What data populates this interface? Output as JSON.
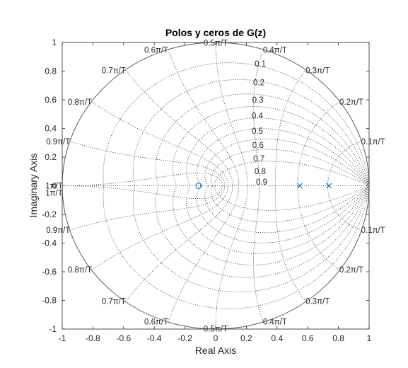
{
  "chart_data": {
    "type": "scatter",
    "title": "Polos y ceros de G(z)",
    "xlabel": "Real Axis",
    "ylabel": "Imaginary Axis",
    "xlim": [
      -1,
      1
    ],
    "ylim": [
      -1,
      1
    ],
    "x_ticks": [
      -1,
      -0.8,
      -0.6,
      -0.4,
      -0.2,
      0,
      0.2,
      0.4,
      0.6,
      0.8,
      1
    ],
    "x_tick_labels": [
      "-1",
      "-0.8",
      "-0.6",
      "-0.4",
      "-0.2",
      "0",
      "0.2",
      "0.4",
      "0.6",
      "0.8",
      "1"
    ],
    "y_ticks": [
      1,
      0.8,
      0.6,
      0.4,
      0.2,
      0,
      -0.2,
      -0.4,
      -0.6,
      -0.8,
      -1
    ],
    "y_tick_labels": [
      "1",
      "0.8",
      "0.6",
      "0.4",
      "0.2",
      "0",
      "-0.2",
      "-0.4",
      "-0.6",
      "-0.8",
      "-1"
    ],
    "grid": "zgrid",
    "unit_circle": true,
    "damping_values": [
      0.1,
      0.2,
      0.3,
      0.4,
      0.5,
      0.6,
      0.7,
      0.8,
      0.9
    ],
    "damping_labels": [
      "0.1",
      "0.2",
      "0.3",
      "0.4",
      "0.5",
      "0.6",
      "0.7",
      "0.8",
      "0.9"
    ],
    "natural_freq_values": [
      0.1,
      0.2,
      0.3,
      0.4,
      0.5,
      0.6,
      0.7,
      0.8,
      0.9,
      1.0
    ],
    "natural_freq_labels": [
      "0.1π/T",
      "0.2π/T",
      "0.3π/T",
      "0.4π/T",
      "0.5π/T",
      "0.6π/T",
      "0.7π/T",
      "0.8π/T",
      "0.9π/T",
      "1π/T"
    ],
    "poles": [
      {
        "x": 0.548,
        "y": 0
      },
      {
        "x": 0.738,
        "y": 0
      }
    ],
    "zeros": [
      {
        "x": -0.111,
        "y": 0
      }
    ],
    "colors": {
      "marker": "#0072BD",
      "grid": "#262626",
      "axes": "#262626",
      "unit_circle": "#595959"
    }
  }
}
